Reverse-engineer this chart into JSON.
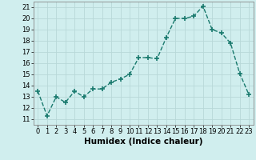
{
  "x": [
    0,
    1,
    2,
    3,
    4,
    5,
    6,
    7,
    8,
    9,
    10,
    11,
    12,
    13,
    14,
    15,
    16,
    17,
    18,
    19,
    20,
    21,
    22,
    23
  ],
  "y": [
    13.5,
    11.3,
    13.0,
    12.5,
    13.5,
    13.0,
    13.7,
    13.7,
    14.3,
    14.6,
    15.0,
    16.5,
    16.5,
    16.4,
    18.3,
    20.0,
    20.0,
    20.2,
    21.1,
    19.0,
    18.7,
    17.8,
    15.1,
    13.2
  ],
  "line_color": "#1a7a6e",
  "marker": "+",
  "marker_size": 4,
  "marker_linewidth": 1.2,
  "line_width": 1.0,
  "bg_color": "#d0eeee",
  "grid_color": "#b8d8d8",
  "xlabel": "Humidex (Indice chaleur)",
  "xlim": [
    -0.5,
    23.5
  ],
  "ylim": [
    10.5,
    21.5
  ],
  "yticks": [
    11,
    12,
    13,
    14,
    15,
    16,
    17,
    18,
    19,
    20,
    21
  ],
  "xticks": [
    0,
    1,
    2,
    3,
    4,
    5,
    6,
    7,
    8,
    9,
    10,
    11,
    12,
    13,
    14,
    15,
    16,
    17,
    18,
    19,
    20,
    21,
    22,
    23
  ],
  "xlabel_fontsize": 7.5,
  "tick_fontsize": 6.0
}
